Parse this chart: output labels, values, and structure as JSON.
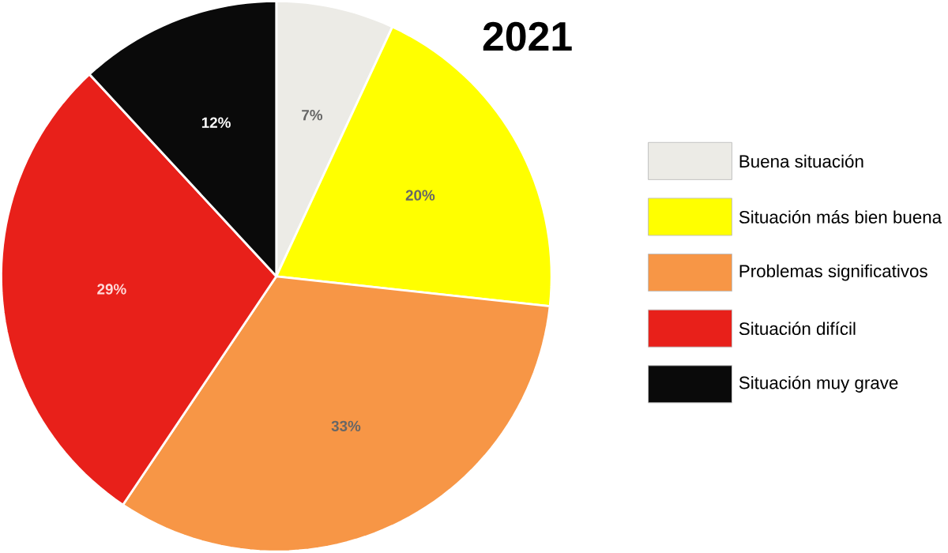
{
  "chart_data": {
    "type": "pie",
    "title": "2021",
    "categories": [
      "Buena situación",
      "Situación más bien buena",
      "Problemas significativos",
      "Situación difícil",
      "Situación muy grave"
    ],
    "values": [
      7,
      20,
      33,
      29,
      12
    ],
    "value_labels": [
      "7%",
      "20%",
      "33%",
      "29%",
      "12%"
    ],
    "colors": [
      "#ecebe6",
      "#ffff00",
      "#f79646",
      "#e8201a",
      "#0a0a0a"
    ],
    "legend": "right"
  }
}
